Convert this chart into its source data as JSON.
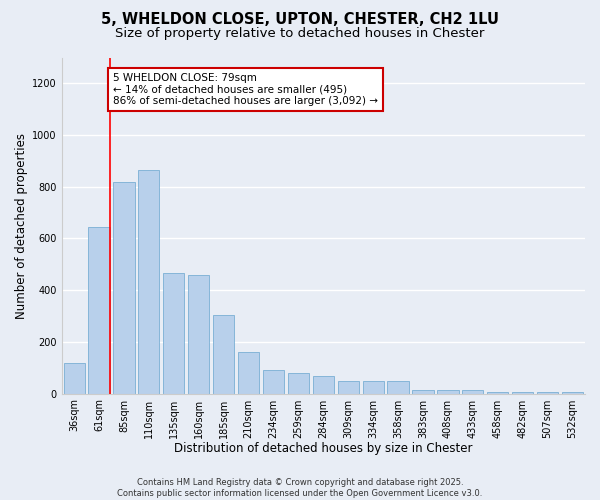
{
  "title_line1": "5, WHELDON CLOSE, UPTON, CHESTER, CH2 1LU",
  "title_line2": "Size of property relative to detached houses in Chester",
  "xlabel": "Distribution of detached houses by size in Chester",
  "ylabel": "Number of detached properties",
  "categories": [
    "36sqm",
    "61sqm",
    "85sqm",
    "110sqm",
    "135sqm",
    "160sqm",
    "185sqm",
    "210sqm",
    "234sqm",
    "259sqm",
    "284sqm",
    "309sqm",
    "334sqm",
    "358sqm",
    "383sqm",
    "408sqm",
    "433sqm",
    "458sqm",
    "482sqm",
    "507sqm",
    "532sqm"
  ],
  "values": [
    120,
    645,
    820,
    865,
    465,
    460,
    305,
    160,
    90,
    78,
    68,
    50,
    50,
    50,
    12,
    12,
    12,
    5,
    5,
    5,
    5
  ],
  "bar_color": "#b8d0eb",
  "bar_edge_color": "#7aafd4",
  "bg_color": "#e8edf5",
  "annotation_text": "5 WHELDON CLOSE: 79sqm\n← 14% of detached houses are smaller (495)\n86% of semi-detached houses are larger (3,092) →",
  "annotation_box_color": "#ffffff",
  "annotation_box_edge_color": "#cc0000",
  "red_line_x": 1.425,
  "ylim": [
    0,
    1300
  ],
  "yticks": [
    0,
    200,
    400,
    600,
    800,
    1000,
    1200
  ],
  "footer_line1": "Contains HM Land Registry data © Crown copyright and database right 2025.",
  "footer_line2": "Contains public sector information licensed under the Open Government Licence v3.0.",
  "title_fontsize": 10.5,
  "subtitle_fontsize": 9.5,
  "label_fontsize": 8.5,
  "tick_fontsize": 7,
  "annotation_fontsize": 7.5,
  "footer_fontsize": 6.0
}
